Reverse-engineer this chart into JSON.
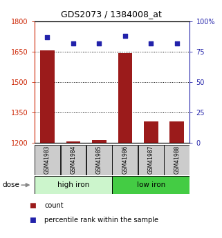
{
  "title": "GDS2073 / 1384008_at",
  "samples": [
    "GSM41983",
    "GSM41984",
    "GSM41985",
    "GSM41986",
    "GSM41987",
    "GSM41988"
  ],
  "bar_values": [
    1657,
    1207,
    1213,
    1643,
    1307,
    1307
  ],
  "bar_bottom": 1200,
  "percentile_values": [
    87,
    82,
    82,
    88,
    82,
    82
  ],
  "bar_color": "#9b1b1b",
  "dot_color": "#2222aa",
  "ylim_left": [
    1200,
    1800
  ],
  "ylim_right": [
    0,
    100
  ],
  "yticks_left": [
    1200,
    1350,
    1500,
    1650,
    1800
  ],
  "yticks_right": [
    0,
    25,
    50,
    75,
    100
  ],
  "groups": [
    {
      "label": "high iron",
      "samples": [
        0,
        1,
        2
      ],
      "color": "#ccf5cc"
    },
    {
      "label": "low iron",
      "samples": [
        3,
        4,
        5
      ],
      "color": "#44cc44"
    }
  ],
  "dose_label": "dose",
  "legend_count_label": "count",
  "legend_percentile_label": "percentile rank within the sample",
  "tick_color_left": "#cc2200",
  "tick_color_right": "#2222aa",
  "bar_width": 0.55,
  "hgrid_vals": [
    1350,
    1500,
    1650
  ]
}
